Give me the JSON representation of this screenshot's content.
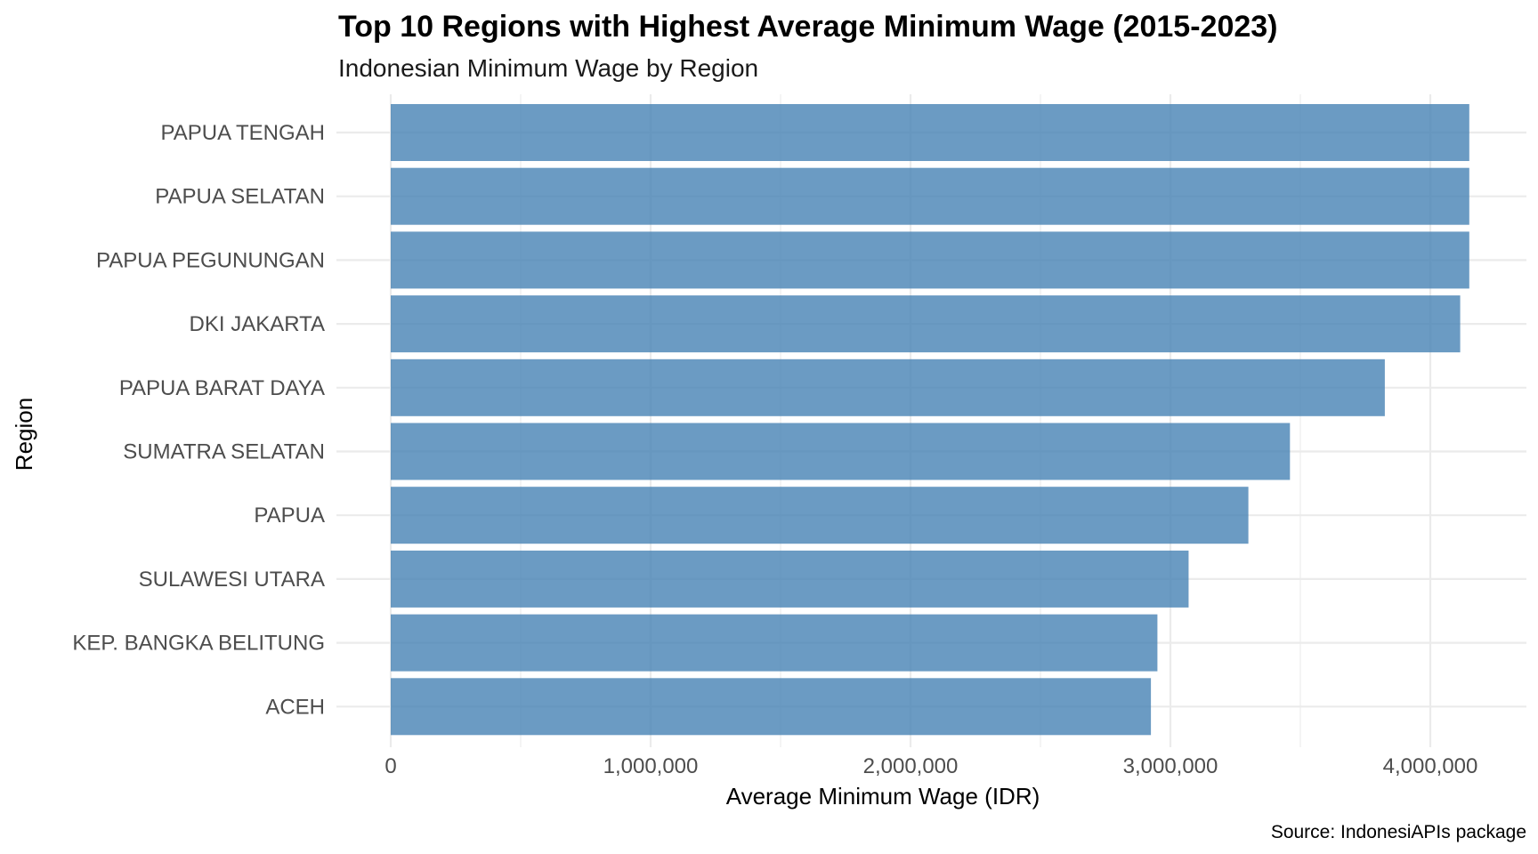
{
  "chart_data": {
    "type": "bar",
    "orientation": "horizontal",
    "title": "Top 10 Regions with Highest Average Minimum Wage (2015-2023)",
    "subtitle": "Indonesian Minimum Wage by Region",
    "xlabel": "Average Minimum Wage (IDR)",
    "ylabel": "Region",
    "caption": "Source: IndonesiAPIs package",
    "xlim": [
      0,
      4200000
    ],
    "x_ticks": [
      0,
      1000000,
      2000000,
      3000000,
      4000000
    ],
    "x_tick_labels": [
      "0",
      "1,000,000",
      "2,000,000",
      "3,000,000",
      "4,000,000"
    ],
    "grid": true,
    "bar_color": "#4682b4",
    "categories": [
      "PAPUA TENGAH",
      "PAPUA SELATAN",
      "PAPUA PEGUNUNGAN",
      "DKI JAKARTA",
      "PAPUA BARAT DAYA",
      "SUMATRA SELATAN",
      "PAPUA",
      "SULAWESI UTARA",
      "KEP. BANGKA BELITUNG",
      "ACEH"
    ],
    "values": [
      4150000,
      4150000,
      4150000,
      4115000,
      3825000,
      3460000,
      3300000,
      3070000,
      2950000,
      2925000
    ]
  }
}
